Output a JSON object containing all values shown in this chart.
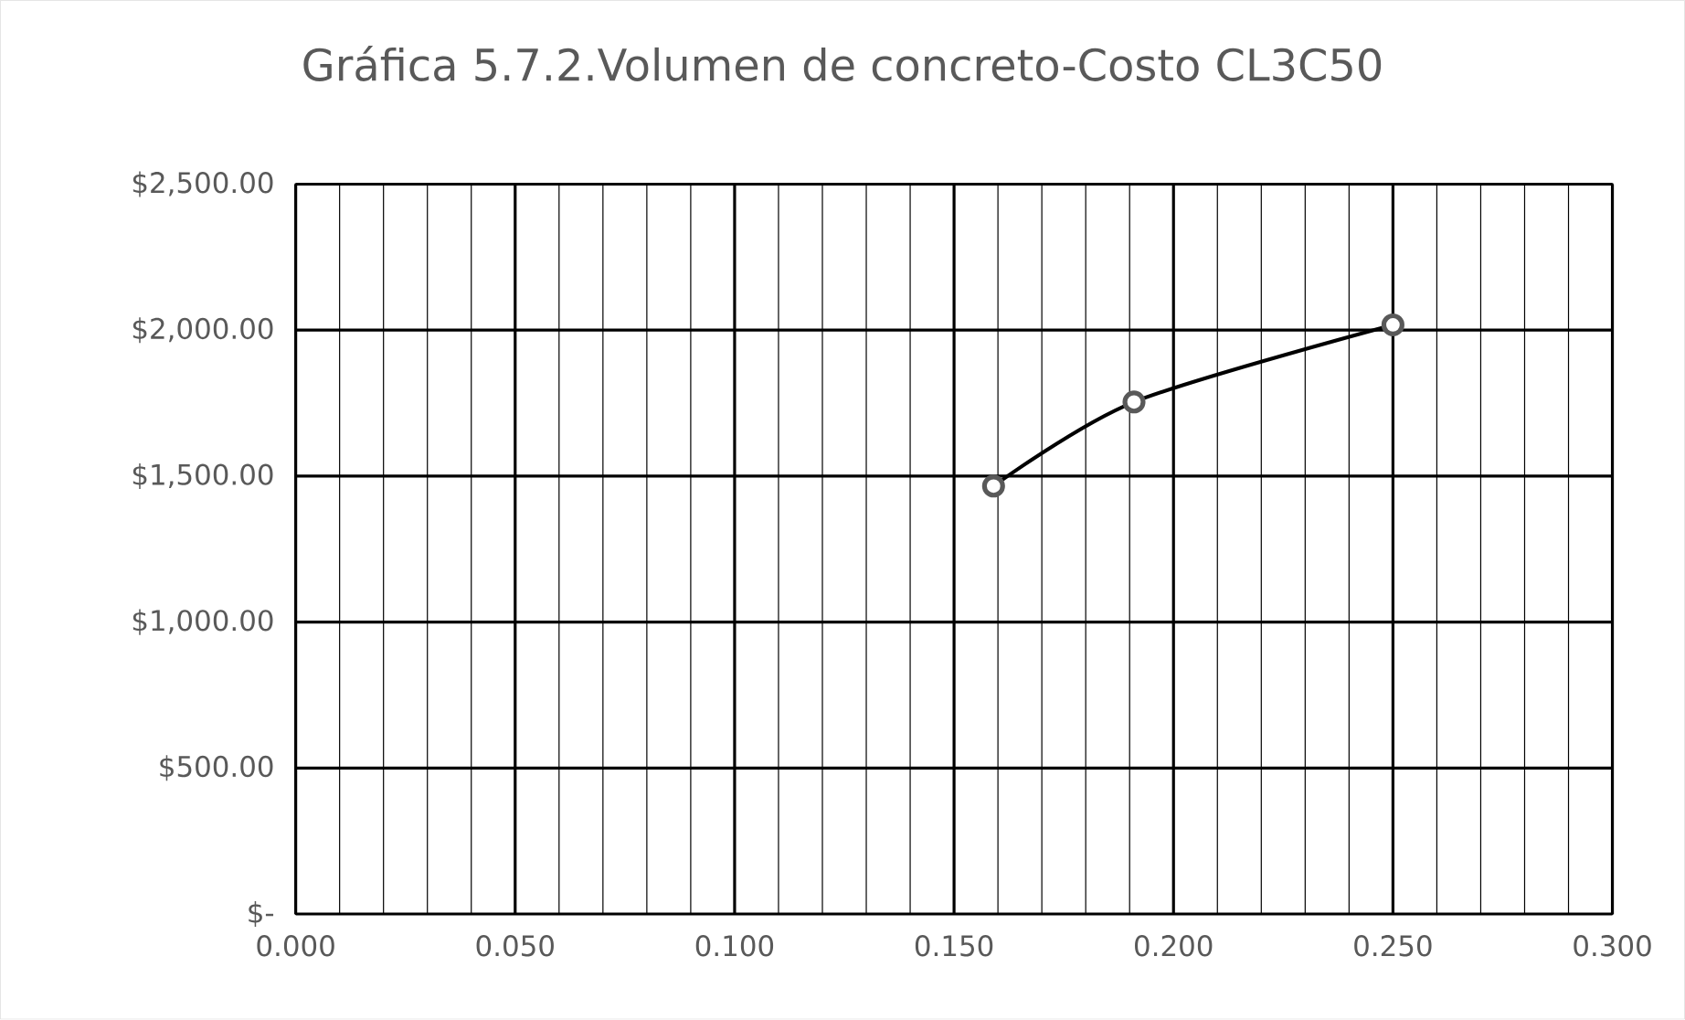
{
  "chart_data": {
    "type": "line",
    "title": "Gráfica 5.7.2.Volumen de concreto-Costo CL3C50",
    "x": [
      0.159,
      0.191,
      0.25
    ],
    "series": [
      {
        "color": "#000000",
        "values": [
          1466,
          1754,
          2018
        ]
      }
    ],
    "marker": "circle",
    "line_style": "solid",
    "grid": true,
    "xlim": [
      0,
      0.3
    ],
    "xticks": [
      {
        "value": 0,
        "label": "0.000"
      },
      {
        "value": 0.01,
        "label": null
      },
      {
        "value": 0.02,
        "label": null
      },
      {
        "value": 0.03,
        "label": null
      },
      {
        "value": 0.04,
        "label": null
      },
      {
        "value": 0.05,
        "label": "0.050"
      },
      {
        "value": 0.06,
        "label": null
      },
      {
        "value": 0.07,
        "label": null
      },
      {
        "value": 0.08,
        "label": null
      },
      {
        "value": 0.09,
        "label": null
      },
      {
        "value": 0.1,
        "label": "0.100"
      },
      {
        "value": 0.11,
        "label": null
      },
      {
        "value": 0.12,
        "label": null
      },
      {
        "value": 0.13,
        "label": null
      },
      {
        "value": 0.14,
        "label": null
      },
      {
        "value": 0.15,
        "label": "0.150"
      },
      {
        "value": 0.16,
        "label": null
      },
      {
        "value": 0.17,
        "label": null
      },
      {
        "value": 0.18,
        "label": null
      },
      {
        "value": 0.19,
        "label": null
      },
      {
        "value": 0.2,
        "label": "0.200"
      },
      {
        "value": 0.21,
        "label": null
      },
      {
        "value": 0.22,
        "label": null
      },
      {
        "value": 0.23,
        "label": null
      },
      {
        "value": 0.24,
        "label": null
      },
      {
        "value": 0.25,
        "label": "0.250"
      },
      {
        "value": 0.26,
        "label": null
      },
      {
        "value": 0.27,
        "label": null
      },
      {
        "value": 0.28,
        "label": null
      },
      {
        "value": 0.29,
        "label": null
      },
      {
        "value": 0.3,
        "label": "0.300"
      }
    ],
    "ylim": [
      0,
      2500
    ],
    "yticks": [
      {
        "value": 0,
        "label": "$-"
      },
      {
        "value": 500,
        "label": "$500.00"
      },
      {
        "value": 1000,
        "label": "$1,000.00"
      },
      {
        "value": 1500,
        "label": "$1,500.00"
      },
      {
        "value": 2000,
        "label": "$2,000.00"
      },
      {
        "value": 2500,
        "label": "$2,500.00"
      }
    ]
  }
}
